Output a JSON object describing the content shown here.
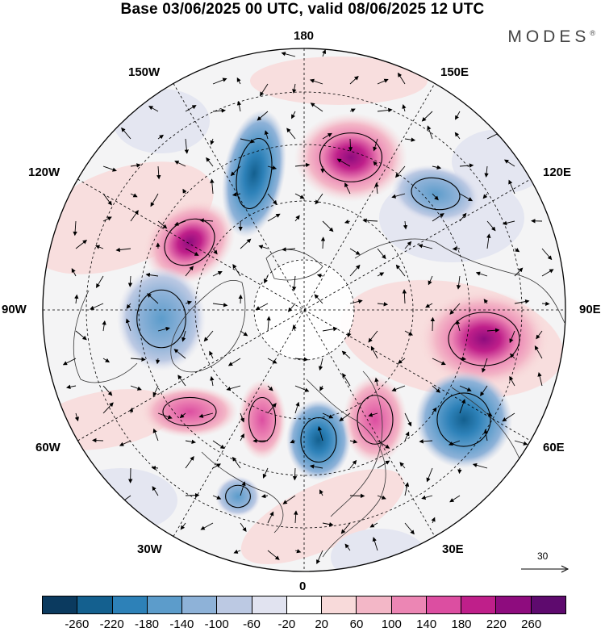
{
  "header": {
    "title": "Base 03/06/2025 00 UTC, valid 08/06/2025 12 UTC",
    "brand": "MODES",
    "brand_mark": "®"
  },
  "map": {
    "projection": "north-polar-stereographic",
    "longitude_labels": {
      "top": "180",
      "bottom": "0",
      "left": "90W",
      "right": "90E",
      "upper_left_1": "150W",
      "upper_left_2": "120W",
      "lower_left_1": "60W",
      "lower_left_2": "30W",
      "upper_right_1": "150E",
      "upper_right_2": "120E",
      "lower_right_1": "60E",
      "lower_right_2": "30E"
    },
    "reference_vector": "30",
    "anomalies": [
      {
        "name": "positive",
        "value": 240
      },
      {
        "name": "negative",
        "value": -180
      },
      {
        "name": "positive",
        "value": 240
      },
      {
        "name": "negative",
        "value": -140
      },
      {
        "name": "positive",
        "value": 220
      },
      {
        "name": "negative",
        "value": -160
      },
      {
        "name": "positive",
        "value": 120
      },
      {
        "name": "positive",
        "value": 100
      },
      {
        "name": "negative",
        "value": -220
      },
      {
        "name": "positive",
        "value": 120
      },
      {
        "name": "negative",
        "value": -200
      },
      {
        "name": "negative",
        "value": -100
      }
    ]
  },
  "colorbar": {
    "colors": [
      "#0b3a5f",
      "#14608f",
      "#2d81b8",
      "#5c9ccb",
      "#8eb2d8",
      "#bcc9e3",
      "#e1e3f0",
      "#ffffff",
      "#f8dada",
      "#f3b7c7",
      "#ec86b4",
      "#dc4ea1",
      "#bf1f8a",
      "#8e0c7e",
      "#5e0a6e"
    ],
    "ticks": [
      "-260",
      "-220",
      "-180",
      "-140",
      "-100",
      "-60",
      "-20",
      "20",
      "60",
      "100",
      "140",
      "180",
      "220",
      "260"
    ]
  }
}
